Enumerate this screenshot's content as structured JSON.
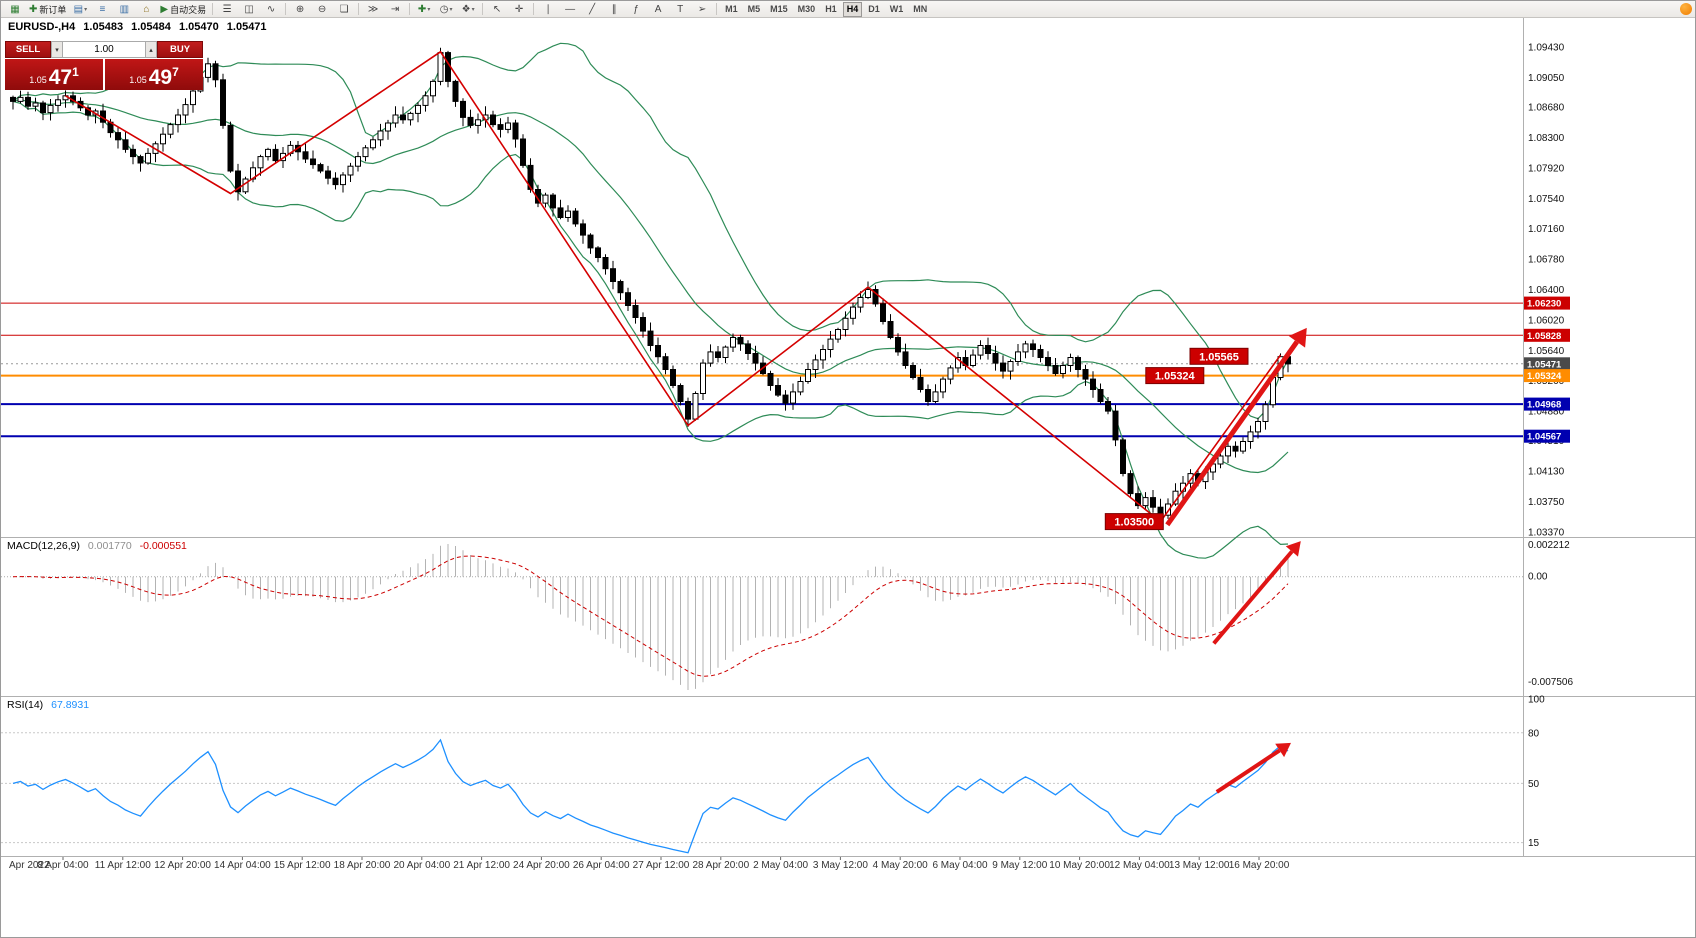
{
  "header": {
    "symbol_period": "EURUSD-,H4",
    "open": "1.05483",
    "high": "1.05484",
    "low": "1.05470",
    "close": "1.05471"
  },
  "one_click": {
    "sell_label": "SELL",
    "buy_label": "BUY",
    "volume": "1.00",
    "spin_down_glyph": "▾",
    "spin_up_glyph": "▴",
    "bid_prefix": "1.05",
    "bid_main": "47",
    "bid_pip": "1",
    "ask_prefix": "1.05",
    "ask_main": "49",
    "ask_pip": "7"
  },
  "toolbar": {
    "groups": [
      {
        "name": "standard",
        "items": [
          {
            "name": "new-chart",
            "glyph": "▦",
            "color": "#2e7d32"
          },
          {
            "name": "new-order",
            "glyph": "✚",
            "color": "#2e7d32",
            "label": "新订单"
          },
          {
            "name": "chart-profiles",
            "glyph": "▤",
            "color": "#3a6ea5",
            "dropdown": true
          },
          {
            "name": "market-watch",
            "glyph": "≡",
            "color": "#3a6ea5"
          },
          {
            "name": "data-window",
            "glyph": "▥",
            "color": "#3a6ea5"
          },
          {
            "name": "navigator",
            "glyph": "⌂",
            "color": "#8a6d1a"
          },
          {
            "name": "autotrading",
            "glyph": "▶",
            "color": "#2e7d32",
            "label": "自动交易"
          }
        ]
      },
      {
        "name": "chart-types",
        "items": [
          {
            "name": "bar-chart",
            "glyph": "☰",
            "color": "#444444"
          },
          {
            "name": "candlestick-chart",
            "glyph": "◫",
            "color": "#444444"
          },
          {
            "name": "line-chart",
            "glyph": "∿",
            "color": "#444444"
          }
        ]
      },
      {
        "name": "zoom",
        "items": [
          {
            "name": "zoom-in",
            "glyph": "⊕",
            "color": "#444444"
          },
          {
            "name": "zoom-out",
            "glyph": "⊖",
            "color": "#444444"
          },
          {
            "name": "tile-windows",
            "glyph": "❏",
            "color": "#444444"
          }
        ]
      },
      {
        "name": "scroll",
        "items": [
          {
            "name": "auto-scroll",
            "glyph": "≫",
            "color": "#444444"
          },
          {
            "name": "chart-shift",
            "glyph": "⇥",
            "color": "#444444"
          }
        ]
      },
      {
        "name": "insert",
        "items": [
          {
            "name": "indicators-list",
            "glyph": "✚",
            "color": "#2e7d32",
            "dropdown": true
          },
          {
            "name": "periods",
            "glyph": "◷",
            "color": "#444444",
            "dropdown": true
          },
          {
            "name": "templates",
            "glyph": "❖",
            "color": "#444444",
            "dropdown": true
          }
        ]
      },
      {
        "name": "cursor",
        "items": [
          {
            "name": "cursor",
            "glyph": "↖",
            "color": "#444444"
          },
          {
            "name": "crosshair",
            "glyph": "✛",
            "color": "#444444"
          }
        ]
      },
      {
        "name": "objects",
        "items": [
          {
            "name": "vertical-line",
            "glyph": "∣",
            "color": "#444444"
          },
          {
            "name": "horizontal-line",
            "glyph": "—",
            "color": "#444444"
          },
          {
            "name": "trendline",
            "glyph": "╱",
            "color": "#444444"
          },
          {
            "name": "equidistant-channel",
            "glyph": "∥",
            "color": "#444444"
          },
          {
            "name": "fibonacci",
            "glyph": "ƒ",
            "color": "#444444"
          },
          {
            "name": "text",
            "glyph": "A",
            "color": "#444444"
          },
          {
            "name": "text-label",
            "glyph": "T",
            "color": "#444444"
          },
          {
            "name": "arrow-object",
            "glyph": "➢",
            "color": "#444444"
          }
        ]
      }
    ],
    "timeframes": {
      "items": [
        "M1",
        "M5",
        "M15",
        "M30",
        "H1",
        "H4",
        "D1",
        "W1",
        "MN"
      ],
      "active": "H4"
    }
  },
  "colors": {
    "bull": "#ffffff",
    "bear": "#000000",
    "candle_stroke": "#000000",
    "bollinger": "#2e8b57",
    "zigzag": "#d40000",
    "arrow": "#e01515",
    "macd_hist": "#b3b3b3",
    "macd_signal": "#cc0000",
    "rsi_line": "#1e90ff"
  },
  "chart_data": {
    "type": "candlestick",
    "symbol": "EURUSD-",
    "timeframe": "H4",
    "price_axis": {
      "labels": [
        "1.09430",
        "1.09050",
        "1.08680",
        "1.08300",
        "1.07920",
        "1.07540",
        "1.07160",
        "1.06780",
        "1.06400",
        "1.06020",
        "1.05640",
        "1.05260",
        "1.04880",
        "1.04510",
        "1.04130",
        "1.03750",
        "1.03370"
      ],
      "tags": [
        {
          "text": "1.06230",
          "bg": "#cc0000"
        },
        {
          "text": "1.05828",
          "bg": "#cc0000"
        },
        {
          "text": "1.05471",
          "bg": "#4a4a4a"
        },
        {
          "text": "1.05324",
          "bg": "#ff8c00"
        },
        {
          "text": "1.04968",
          "bg": "#0000b0"
        },
        {
          "text": "1.04567",
          "bg": "#0000b0"
        }
      ]
    },
    "date_axis": [
      "Apr 2022",
      "8 Apr 04:00",
      "11 Apr 12:00",
      "12 Apr 20:00",
      "14 Apr 04:00",
      "15 Apr 12:00",
      "18 Apr 20:00",
      "20 Apr 04:00",
      "21 Apr 12:00",
      "24 Apr 20:00",
      "26 Apr 04:00",
      "27 Apr 12:00",
      "28 Apr 20:00",
      "2 May 04:00",
      "3 May 12:00",
      "4 May 20:00",
      "6 May 04:00",
      "9 May 12:00",
      "10 May 20:00",
      "12 May 04:00",
      "13 May 12:00",
      "16 May 20:00"
    ],
    "candles_close": [
      1.0875,
      1.088,
      1.0869,
      1.0873,
      1.0861,
      1.087,
      1.0877,
      1.0882,
      1.0875,
      1.0867,
      1.0858,
      1.0863,
      1.0849,
      1.0836,
      1.0827,
      1.0815,
      1.0806,
      1.0798,
      1.081,
      1.0822,
      1.0834,
      1.0846,
      1.0858,
      1.0871,
      1.0888,
      1.0905,
      1.0922,
      1.0902,
      1.0845,
      1.0788,
      1.0762,
      1.0778,
      1.0792,
      1.0806,
      1.0815,
      1.0801,
      1.081,
      1.082,
      1.0812,
      1.0803,
      1.0796,
      1.0788,
      1.0779,
      1.0771,
      1.0783,
      1.0794,
      1.0806,
      1.0817,
      1.0827,
      1.0838,
      1.0848,
      1.0858,
      1.0852,
      1.086,
      1.087,
      1.0882,
      1.09,
      1.0936,
      1.09,
      1.0875,
      1.0855,
      1.0845,
      1.0852,
      1.0858,
      1.0846,
      1.084,
      1.0848,
      1.0828,
      1.0795,
      1.0765,
      1.0748,
      1.0758,
      1.0742,
      1.073,
      1.0738,
      1.0722,
      1.0708,
      1.0692,
      1.068,
      1.0666,
      1.065,
      1.0636,
      1.062,
      1.0605,
      1.0588,
      1.057,
      1.0556,
      1.054,
      1.052,
      1.05,
      1.0478,
      1.051,
      1.0548,
      1.0562,
      1.0555,
      1.0568,
      1.058,
      1.0572,
      1.056,
      1.0548,
      1.0535,
      1.052,
      1.0508,
      1.0498,
      1.0512,
      1.0525,
      1.054,
      1.0552,
      1.0565,
      1.0578,
      1.059,
      1.0604,
      1.0618,
      1.063,
      1.064,
      1.0622,
      1.06,
      1.058,
      1.0562,
      1.0545,
      1.053,
      1.0515,
      1.05,
      1.0512,
      1.0528,
      1.0542,
      1.0555,
      1.0545,
      1.0558,
      1.057,
      1.056,
      1.0548,
      1.0538,
      1.055,
      1.0562,
      1.0572,
      1.0565,
      1.0555,
      1.0545,
      1.0535,
      1.0545,
      1.0555,
      1.054,
      1.0528,
      1.0515,
      1.05,
      1.0488,
      1.0452,
      1.041,
      1.0385,
      1.037,
      1.038,
      1.0368,
      1.0358,
      1.0372,
      1.0388,
      1.0398,
      1.041,
      1.04,
      1.0412,
      1.0422,
      1.0432,
      1.0444,
      1.0438,
      1.045,
      1.0462,
      1.0475,
      1.0496,
      1.053,
      1.0556,
      1.0547
    ],
    "bollinger": {
      "period": 20,
      "deviation": 2
    },
    "hlines": [
      {
        "price": 1.0623,
        "color": "#cc0000",
        "width": 1
      },
      {
        "price": 1.05828,
        "color": "#cc0000",
        "width": 1
      },
      {
        "price": 1.05324,
        "color": "#ff8c00",
        "width": 2
      },
      {
        "price": 1.04968,
        "color": "#0000b0",
        "width": 2
      },
      {
        "price": 1.04567,
        "color": "#0000b0",
        "width": 2
      }
    ],
    "bid_line": {
      "price": 1.05471,
      "color": "#999999"
    },
    "zigzag": [
      {
        "i": 7,
        "p": 1.0882
      },
      {
        "i": 29,
        "p": 1.076
      },
      {
        "i": 57,
        "p": 1.0937
      },
      {
        "i": 90,
        "p": 1.047
      },
      {
        "i": 114,
        "p": 1.0643
      },
      {
        "i": 153,
        "p": 1.035
      },
      {
        "i": 169,
        "p": 1.0558
      }
    ],
    "price_boxes": [
      {
        "text": "1.05565",
        "i": 160.8,
        "price": 1.05565
      },
      {
        "text": "1.05324",
        "i": 154.9,
        "price": 1.05324
      },
      {
        "text": "1.03500",
        "i": 149.5,
        "price": 1.035
      }
    ],
    "arrows": [
      {
        "panel": "main",
        "i1": 153.9,
        "v1": 1.0346,
        "i2": 172.5,
        "v2": 1.0592,
        "width": 5
      },
      {
        "panel": "macd",
        "i1": 160.1,
        "v1": -0.0045,
        "i2": 171.7,
        "v2": 0.0024,
        "width": 4
      },
      {
        "panel": "rsi",
        "i1": 160.5,
        "v1": 45,
        "i2": 170.4,
        "v2": 74,
        "width": 4
      }
    ],
    "macd": {
      "name": "MACD(12,26,9)",
      "main_value": "0.001770",
      "signal_value": "-0.000551",
      "axis_labels": [
        "0.002212",
        "0.00",
        "-0.007506"
      ],
      "fast": 12,
      "slow": 26,
      "signal": 9
    },
    "rsi": {
      "name": "RSI(14)",
      "value": "67.8931",
      "axis_labels": [
        "100",
        "80",
        "50",
        "15"
      ],
      "period": 14
    }
  }
}
